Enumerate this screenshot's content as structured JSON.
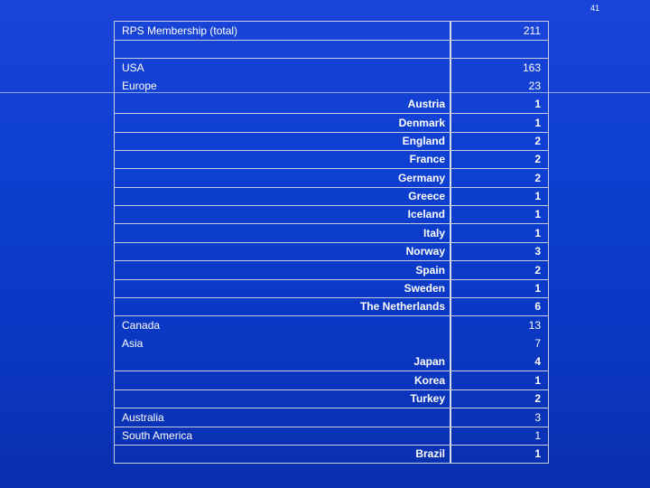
{
  "slide_number": "41",
  "rows": [
    {
      "label": "RPS Membership (total)",
      "value": "211",
      "indent": false
    },
    {
      "label": "",
      "value": "",
      "indent": false
    },
    {
      "label": "USA",
      "value": "163",
      "indent": false
    },
    {
      "label": "Europe",
      "value": "23",
      "indent": false
    },
    {
      "label": "Austria",
      "value": "1",
      "indent": true
    },
    {
      "label": "Denmark",
      "value": "1",
      "indent": true
    },
    {
      "label": "England",
      "value": "2",
      "indent": true
    },
    {
      "label": "France",
      "value": "2",
      "indent": true
    },
    {
      "label": "Germany",
      "value": "2",
      "indent": true
    },
    {
      "label": "Greece",
      "value": "1",
      "indent": true
    },
    {
      "label": "Iceland",
      "value": "1",
      "indent": true
    },
    {
      "label": "Italy",
      "value": "1",
      "indent": true
    },
    {
      "label": "Norway",
      "value": "3",
      "indent": true
    },
    {
      "label": "Spain",
      "value": "2",
      "indent": true
    },
    {
      "label": "Sweden",
      "value": "1",
      "indent": true
    },
    {
      "label": "The Netherlands",
      "value": "6",
      "indent": true
    },
    {
      "label": "Canada",
      "value": "13",
      "indent": false
    },
    {
      "label": "Asia",
      "value": "7",
      "indent": false
    },
    {
      "label": "Japan",
      "value": "4",
      "indent": true
    },
    {
      "label": "Korea",
      "value": "1",
      "indent": true
    },
    {
      "label": "Turkey",
      "value": "2",
      "indent": true
    },
    {
      "label": "Australia",
      "value": "3",
      "indent": false
    },
    {
      "label": "South America",
      "value": "1",
      "indent": false
    },
    {
      "label": "Brazil",
      "value": "1",
      "indent": true
    }
  ]
}
